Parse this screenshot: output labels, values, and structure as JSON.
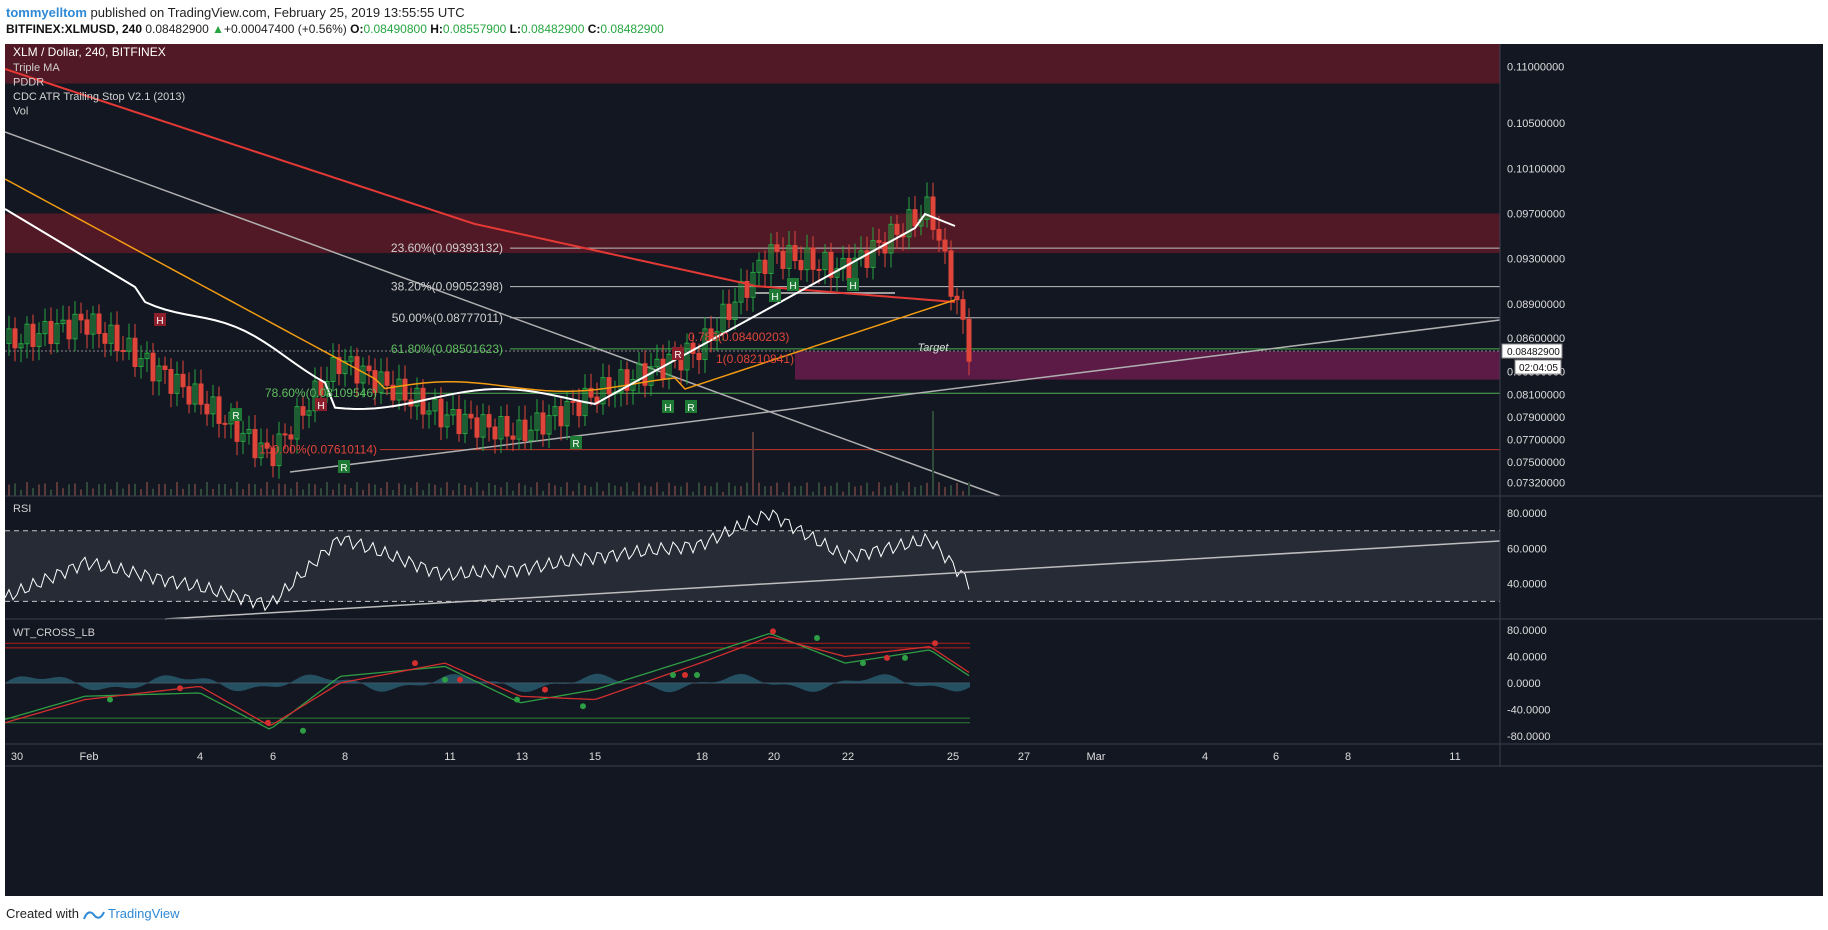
{
  "header": {
    "author": "tommyelltom",
    "published_text": "published on TradingView.com, February 25, 2019 13:55:55 UTC",
    "symbol": "BITFINEX:XLMUSD, 240",
    "last_price": "0.08482900",
    "change_arrow": "▲",
    "change": "+0.00047400 (+0.56%)",
    "ohlc": [
      {
        "key": "O:",
        "value": "0.08490800"
      },
      {
        "key": "H:",
        "value": "0.08557900"
      },
      {
        "key": "L:",
        "value": "0.08482900"
      },
      {
        "key": "C:",
        "value": "0.08482900"
      }
    ]
  },
  "legend": {
    "title": "XLM / Dollar, 240, BITFINEX",
    "indicators": [
      "Triple MA",
      "PDDR",
      "CDC ATR Trailing Stop V2.1 (2013)",
      "Vol"
    ]
  },
  "fib_labels": [
    {
      "text": "23.60%(0.09393132)",
      "price": 0.09393132,
      "color": "#cfcfcf"
    },
    {
      "text": "38.20%(0.09052398)",
      "price": 0.09052398,
      "color": "#cfcfcf"
    },
    {
      "text": "50.00%(0.08777011)",
      "price": 0.08777011,
      "color": "#cfcfcf"
    },
    {
      "text": "61.80%(0.08501623)",
      "price": 0.08501623,
      "color": "#5fbf5f"
    },
    {
      "text": "78.60%(0.08109546)",
      "price": 0.08109546,
      "color": "#5fbf5f"
    },
    {
      "text": "100.00%(0.07610114)",
      "price": 0.07610114,
      "color": "#e0453a"
    }
  ],
  "overlay_fib_labels": [
    {
      "text": "0.786(0.08400203)",
      "color": "#e0453a"
    },
    {
      "text": "1(0.08210841)",
      "color": "#e0453a"
    }
  ],
  "annotations": {
    "target_label": "Target",
    "countdown": "02:04:05",
    "last_price_tag": "0.08482900"
  },
  "price_axis": {
    "ticks": [
      "0.11000000",
      "0.10500000",
      "0.10100000",
      "0.09700000",
      "0.09300000",
      "0.08900000",
      "0.08600000",
      "0.08300000",
      "0.08100000",
      "0.07900000",
      "0.07700000",
      "0.07500000",
      "0.07320000"
    ]
  },
  "rsi_panel": {
    "title": "RSI",
    "ticks": [
      "80.0000",
      "60.0000",
      "40.0000"
    ]
  },
  "wt_panel": {
    "title": "WT_CROSS_LB",
    "ticks": [
      "80.0000",
      "40.0000",
      "0.0000",
      "-40.0000",
      "-80.0000"
    ]
  },
  "time_axis": {
    "labels": [
      "30",
      "Feb",
      "4",
      "6",
      "8",
      "11",
      "13",
      "15",
      "18",
      "20",
      "22",
      "25",
      "27",
      "Mar",
      "4",
      "6",
      "8",
      "11"
    ]
  },
  "signals": {
    "h_labels": [
      "H",
      "H",
      "H",
      "H",
      "H",
      "H"
    ],
    "r_labels": [
      "R",
      "R",
      "R",
      "R",
      "R"
    ]
  },
  "footer": {
    "created_with": "Created with",
    "brand": "TradingView"
  },
  "colors": {
    "background": "#131722",
    "resistance_zone": "#5c1a26",
    "target_zone": "#6a1b4d",
    "candle_up": "#26a640",
    "candle_down": "#e0453a",
    "ma_fast": "#ffffff",
    "ma_mid": "#f39c12",
    "ma_slow": "#e53935"
  },
  "chart_data": [
    {
      "type": "line",
      "title": "XLM / Dollar, 240, BITFINEX",
      "xlabel": "",
      "ylabel": "",
      "y_scale": "linear",
      "grid": false,
      "x": [
        "Jan 30",
        "Feb 1",
        "Feb 4",
        "Feb 6",
        "Feb 8",
        "Feb 11",
        "Feb 13",
        "Feb 15",
        "Feb 18",
        "Feb 20",
        "Feb 22",
        "Feb 24",
        "Feb 25"
      ],
      "series": [
        {
          "name": "Close",
          "values": [
            0.0855,
            0.0875,
            0.0805,
            0.0755,
            0.084,
            0.079,
            0.0775,
            0.081,
            0.085,
            0.0935,
            0.092,
            0.0975,
            0.0848
          ]
        }
      ],
      "ylim": [
        0.072,
        0.112
      ],
      "fib_levels": [
        0.09393132,
        0.09052398,
        0.08777011,
        0.08501623,
        0.08109546,
        0.07610114
      ],
      "target_zone": [
        0.0823,
        0.0848
      ],
      "resistance_zones": [
        [
          0.1085,
          0.112
        ],
        [
          0.0935,
          0.097
        ]
      ]
    },
    {
      "type": "line",
      "title": "RSI",
      "x": [
        "Jan 30",
        "Feb 1",
        "Feb 4",
        "Feb 6",
        "Feb 8",
        "Feb 11",
        "Feb 13",
        "Feb 15",
        "Feb 18",
        "Feb 20",
        "Feb 22",
        "Feb 24",
        "Feb 25"
      ],
      "series": [
        {
          "name": "RSI",
          "values": [
            32,
            52,
            38,
            28,
            66,
            45,
            48,
            55,
            62,
            80,
            55,
            65,
            40
          ]
        }
      ],
      "ylim": [
        20,
        88
      ],
      "bands": [
        70,
        30
      ]
    },
    {
      "type": "line",
      "title": "WT_CROSS_LB",
      "x": [
        "Jan 30",
        "Feb 1",
        "Feb 4",
        "Feb 6",
        "Feb 8",
        "Feb 11",
        "Feb 13",
        "Feb 15",
        "Feb 18",
        "Feb 20",
        "Feb 22",
        "Feb 24",
        "Feb 25"
      ],
      "series": [
        {
          "name": "WT1",
          "values": [
            -55,
            -20,
            -15,
            -70,
            10,
            25,
            -30,
            -10,
            40,
            75,
            30,
            50,
            10
          ]
        },
        {
          "name": "WT2",
          "values": [
            -60,
            -25,
            -5,
            -65,
            0,
            30,
            -20,
            -25,
            30,
            70,
            40,
            55,
            15
          ]
        }
      ],
      "ylim": [
        -80,
        80
      ],
      "bands": [
        60,
        53,
        -53,
        -60
      ]
    }
  ]
}
